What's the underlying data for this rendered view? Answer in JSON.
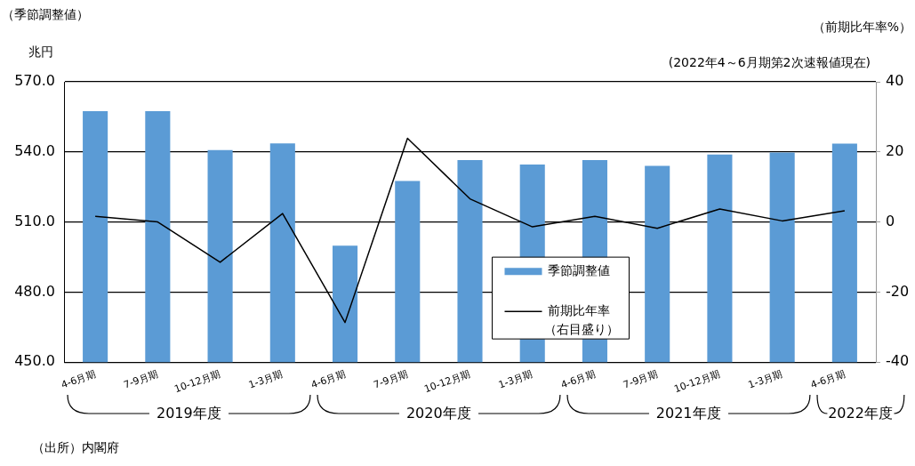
{
  "chart_data": {
    "type": "bar",
    "subtitle": "(2022年4～6月期第2次速報値現在)",
    "ylabel": "兆円",
    "y2label": "（前期比年率%）",
    "annotations": [
      "（季節調整値）",
      "2019年度",
      "2020年度",
      "2021年度",
      "2022年度",
      "（出所）内閣府"
    ],
    "categories": [
      "4-6月期",
      "7-9月期",
      "10-12月期",
      "1-3月期",
      "4-6月期",
      "7-9月期",
      "10-12月期",
      "1-3月期",
      "4-6月期",
      "7-9月期",
      "10-12月期",
      "1-3月期",
      "4-6月期"
    ],
    "series": [
      {
        "name": "季節調整値",
        "color": "#5b9bd5",
        "values": [
          557.4,
          557.4,
          540.8,
          543.6,
          499.8,
          527.5,
          536.5,
          534.6,
          536.5,
          534.0,
          538.9,
          539.7,
          543.5
        ]
      },
      {
        "name": "前期比年率（右目盛り）",
        "type": "line",
        "axis": "y2",
        "color": "#000000",
        "values": [
          1.6,
          0.0,
          -11.5,
          2.4,
          -28.7,
          23.9,
          6.6,
          -1.4,
          1.6,
          -1.8,
          3.7,
          0.3,
          3.2
        ]
      }
    ],
    "ylim": [
      450,
      570
    ],
    "yticks": [
      {
        "value": 450,
        "label": "450.0"
      },
      {
        "value": 480,
        "label": "480.0"
      },
      {
        "value": 510,
        "label": "510.0"
      },
      {
        "value": 540,
        "label": "540.0"
      },
      {
        "value": 570,
        "label": "570.0"
      }
    ],
    "y2lim": [
      -40,
      40
    ],
    "y2ticks": [
      -40,
      -20,
      0,
      20,
      40
    ],
    "grid": "y",
    "legend": "bottom",
    "marker": "none",
    "line_style": "solid"
  }
}
